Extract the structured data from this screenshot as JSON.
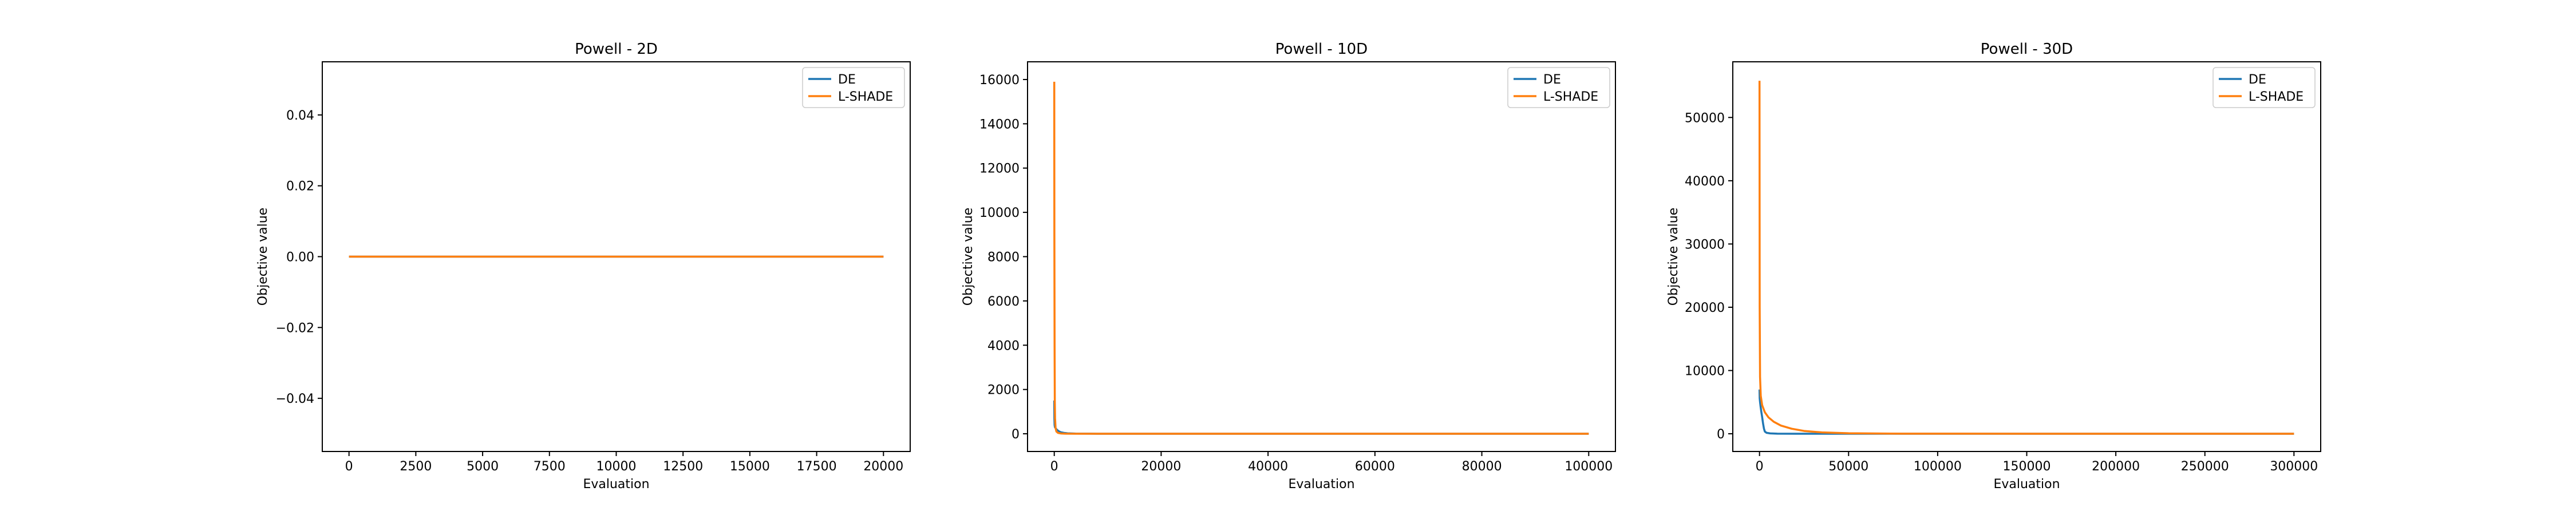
{
  "figure": {
    "background": "#ffffff"
  },
  "chart_data": [
    {
      "type": "line",
      "title": "Powell - 2D",
      "xlabel": "Evaluation",
      "ylabel": "Objective value",
      "xlim": [
        -1000,
        21000
      ],
      "ylim": [
        -0.055,
        0.055
      ],
      "xticks": [
        0,
        2500,
        5000,
        7500,
        10000,
        12500,
        15000,
        17500,
        20000
      ],
      "xtick_labels": [
        "0",
        "2500",
        "5000",
        "7500",
        "10000",
        "12500",
        "15000",
        "17500",
        "20000"
      ],
      "yticks": [
        -0.04,
        -0.02,
        0.0,
        0.02,
        0.04
      ],
      "ytick_labels": [
        "−0.04",
        "−0.02",
        "0.00",
        "0.02",
        "0.04"
      ],
      "legend_position": "top-right",
      "grid": false,
      "series": [
        {
          "name": "DE",
          "color": "#1f77b4",
          "x": [
            0,
            20000
          ],
          "y": [
            0,
            0
          ]
        },
        {
          "name": "L-SHADE",
          "color": "#ff7f0e",
          "x": [
            0,
            20000
          ],
          "y": [
            0,
            0
          ]
        }
      ]
    },
    {
      "type": "line",
      "title": "Powell - 10D",
      "xlabel": "Evaluation",
      "ylabel": "Objective value",
      "xlim": [
        -5000,
        105000
      ],
      "ylim": [
        -800,
        16800
      ],
      "xticks": [
        0,
        20000,
        40000,
        60000,
        80000,
        100000
      ],
      "xtick_labels": [
        "0",
        "20000",
        "40000",
        "60000",
        "80000",
        "100000"
      ],
      "yticks": [
        0,
        2000,
        4000,
        6000,
        8000,
        10000,
        12000,
        14000,
        16000
      ],
      "ytick_labels": [
        "0",
        "2000",
        "4000",
        "6000",
        "8000",
        "10000",
        "12000",
        "14000",
        "16000"
      ],
      "legend_position": "top-right",
      "grid": false,
      "series": [
        {
          "name": "DE",
          "color": "#1f77b4",
          "x": [
            0,
            20,
            60,
            120,
            250,
            500,
            800,
            1200,
            1800,
            2500,
            4000,
            8000,
            100000
          ],
          "y": [
            1500,
            700,
            400,
            300,
            250,
            180,
            120,
            70,
            40,
            20,
            8,
            2,
            0
          ]
        },
        {
          "name": "L-SHADE",
          "color": "#ff7f0e",
          "x": [
            0,
            20,
            60,
            100,
            150,
            250,
            400,
            700,
            1200,
            2000,
            4000,
            100000
          ],
          "y": [
            15900,
            9000,
            4000,
            1500,
            700,
            250,
            100,
            40,
            15,
            5,
            1,
            0
          ]
        }
      ]
    },
    {
      "type": "line",
      "title": "Powell - 30D",
      "xlabel": "Evaluation",
      "ylabel": "Objective value",
      "xlim": [
        -15000,
        315000
      ],
      "ylim": [
        -2800,
        58800
      ],
      "xticks": [
        0,
        50000,
        100000,
        150000,
        200000,
        250000,
        300000
      ],
      "xtick_labels": [
        "0",
        "50000",
        "100000",
        "150000",
        "200000",
        "250000",
        "300000"
      ],
      "yticks": [
        0,
        10000,
        20000,
        30000,
        40000,
        50000
      ],
      "ytick_labels": [
        "0",
        "10000",
        "20000",
        "30000",
        "40000",
        "50000"
      ],
      "legend_position": "top-right",
      "grid": false,
      "series": [
        {
          "name": "DE",
          "color": "#1f77b4",
          "x": [
            0,
            100,
            300,
            600,
            1000,
            1500,
            2000,
            2500,
            3000,
            4000,
            6000,
            10000,
            20000,
            300000
          ],
          "y": [
            7000,
            5600,
            5000,
            4300,
            3500,
            2600,
            1600,
            800,
            350,
            150,
            60,
            20,
            5,
            0
          ]
        },
        {
          "name": "L-SHADE",
          "color": "#ff7f0e",
          "x": [
            0,
            100,
            300,
            700,
            1500,
            3000,
            5000,
            8000,
            12000,
            18000,
            25000,
            35000,
            50000,
            80000,
            300000
          ],
          "y": [
            55800,
            20000,
            9000,
            6000,
            4500,
            3400,
            2600,
            1900,
            1300,
            800,
            450,
            220,
            80,
            15,
            0
          ]
        }
      ]
    }
  ]
}
